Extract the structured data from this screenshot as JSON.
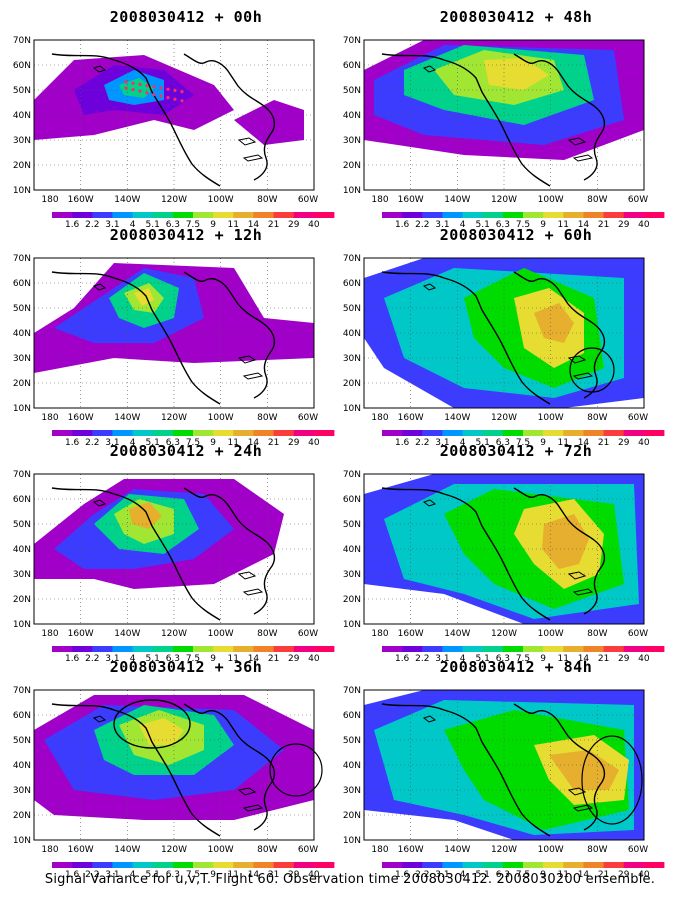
{
  "panels": [
    {
      "title": "2008030412 + 00h"
    },
    {
      "title": "2008030412 + 48h"
    },
    {
      "title": "2008030412 + 12h"
    },
    {
      "title": "2008030412 + 60h"
    },
    {
      "title": "2008030412 + 24h"
    },
    {
      "title": "2008030412 + 72h"
    },
    {
      "title": "2008030412 + 36h"
    },
    {
      "title": "2008030412 + 84h"
    }
  ],
  "lat_labels": [
    "70N",
    "60N",
    "50N",
    "40N",
    "30N",
    "20N",
    "10N"
  ],
  "lon_labels": [
    "180",
    "160W",
    "140W",
    "120W",
    "100W",
    "80W",
    "60W"
  ],
  "colorbar": {
    "levels": [
      "1.6",
      "2.2",
      "3.1",
      "4",
      "5.1",
      "6.3",
      "7.5",
      "9",
      "11",
      "14",
      "21",
      "29",
      "40"
    ],
    "colors": [
      "#a000c8",
      "#6e00dc",
      "#3c3cff",
      "#0096ff",
      "#00c8c8",
      "#00d28c",
      "#00dc00",
      "#a0e632",
      "#e6dc32",
      "#e6af2d",
      "#f08228",
      "#fa3c3c",
      "#f00082",
      "#ff0064"
    ]
  },
  "footer": "Signal Variance for u,v,T. Flight 60. Observation time 2008030412. 2008030200 ensemble."
}
